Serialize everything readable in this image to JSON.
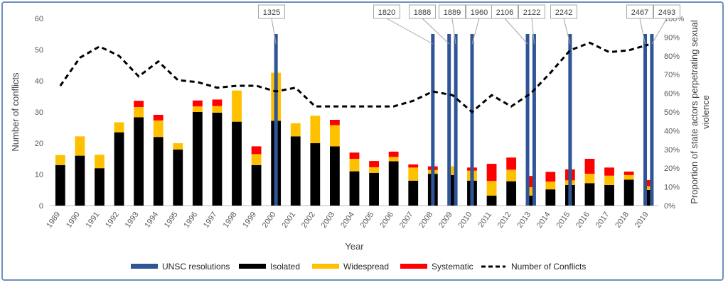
{
  "chart_data": {
    "type": "bar",
    "title": "",
    "xlabel": "Year",
    "ylabel": "Number of conflicts",
    "y2label": [
      "Proportion of state actors perpetrating sexual",
      "violence"
    ],
    "ylim": [
      0,
      60
    ],
    "y2lim": [
      0,
      100
    ],
    "yticks": [
      "0",
      "10",
      "20",
      "30",
      "40",
      "50",
      "60"
    ],
    "y2ticks": [
      "0%",
      "10%",
      "20%",
      "30%",
      "40%",
      "50%",
      "60%",
      "70%",
      "80%",
      "90%",
      "100%"
    ],
    "categories": [
      "1989",
      "1990",
      "1991",
      "1992",
      "1993",
      "1994",
      "1995",
      "1996",
      "1997",
      "1998",
      "1999",
      "2000",
      "2001",
      "2002",
      "2003",
      "2004",
      "2005",
      "2006",
      "2007",
      "2008",
      "2009",
      "2010",
      "2011",
      "2012",
      "2013",
      "2014",
      "2015",
      "2016",
      "2017",
      "2018",
      "2019"
    ],
    "series": [
      {
        "name": "Isolated",
        "type": "stacked-bar",
        "color": "#000000",
        "values": [
          13,
          16,
          12,
          23.5,
          28.3,
          22,
          18,
          30,
          29.8,
          26.9,
          13,
          27.2,
          22.2,
          20,
          19,
          11,
          10.5,
          14.2,
          8,
          10.2,
          9.8,
          8,
          3.2,
          7.8,
          3.2,
          5.2,
          6.6,
          7.2,
          6.6,
          8.3,
          5
        ]
      },
      {
        "name": "Widespread",
        "type": "stacked-bar",
        "color": "#ffc000",
        "values": [
          3.2,
          6.2,
          4.3,
          3.2,
          3.3,
          5.3,
          2,
          1.8,
          2.1,
          10,
          3.5,
          15.4,
          4.2,
          8.8,
          6.8,
          4,
          1.8,
          1.4,
          4.2,
          1.2,
          2.8,
          3.2,
          4.7,
          3.7,
          2.7,
          2.5,
          1.5,
          3,
          3,
          1.5,
          1.2
        ]
      },
      {
        "name": "Systematic",
        "type": "stacked-bar",
        "color": "#ff0000",
        "values": [
          0,
          0,
          0,
          0,
          2,
          1.8,
          0,
          1.9,
          2.1,
          0,
          2.5,
          0,
          0,
          0,
          1.7,
          2,
          2,
          1.7,
          1,
          1.2,
          0,
          1,
          5.5,
          3.9,
          3.6,
          3.1,
          3.5,
          4.8,
          2.6,
          1.1,
          2
        ]
      },
      {
        "name": "UNSC resolutions",
        "type": "marker",
        "color": "#2f5597",
        "years": [
          "2000",
          "2008",
          "2009",
          "2009",
          "2010",
          "2013",
          "2013",
          "2015",
          "2019",
          "2019"
        ],
        "offsets": [
          0,
          0,
          -0.17,
          0.17,
          0,
          -0.17,
          0.17,
          0,
          -0.17,
          0.17
        ]
      },
      {
        "name": "Number of Conflicts",
        "type": "line",
        "axis": "secondary",
        "style": "dashed",
        "values": [
          64,
          79,
          85,
          80,
          69,
          77,
          67,
          66,
          63,
          64,
          64,
          61,
          63,
          53,
          53,
          53,
          53,
          53,
          56,
          61,
          59,
          50,
          59,
          53,
          60,
          71,
          83,
          87,
          82,
          83,
          86
        ]
      }
    ],
    "annotations": [
      "1325",
      "1820",
      "1888",
      "1889",
      "1960",
      "2106",
      "2122",
      "2242",
      "2467",
      "2493"
    ],
    "legend": "bottom",
    "grid": false
  }
}
